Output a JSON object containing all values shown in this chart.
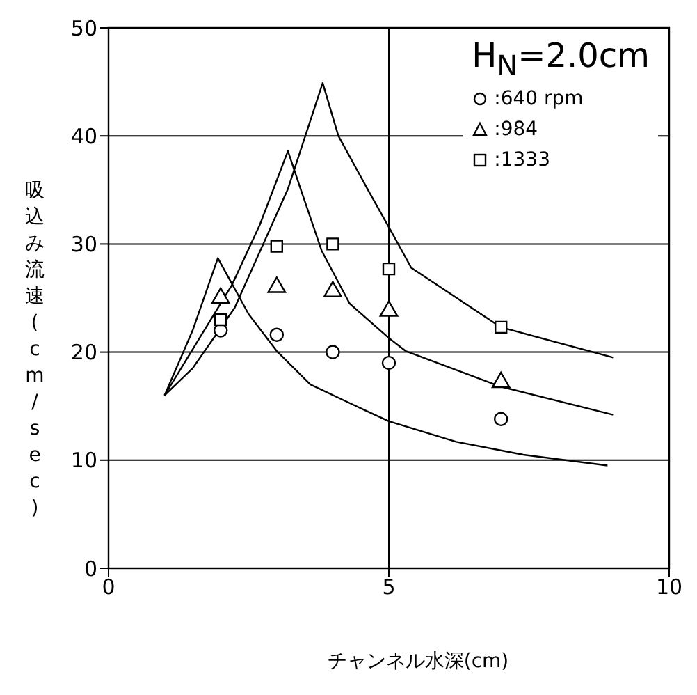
{
  "chart_data": {
    "type": "scatter",
    "xlabel": "チャンネル水深(cm)",
    "ylabel": "吸込み流速(cm/sec)",
    "annotations": [
      "H$_{N}$=2.0cm"
    ],
    "xlim": [
      0,
      10
    ],
    "ylim": [
      0,
      50
    ],
    "xticks": [
      0,
      5,
      10
    ],
    "yticks": [
      0,
      10,
      20,
      30,
      40,
      50
    ],
    "grid": true,
    "legend": "top right",
    "series": [
      {
        "name": ":640 rpm",
        "type": "scatter",
        "marker": "circle",
        "color": "#000000",
        "x": [
          2,
          3,
          4,
          5,
          7
        ],
        "values": [
          22,
          21.6,
          20,
          19,
          13.8
        ]
      },
      {
        "name": ":984",
        "type": "scatter",
        "marker": "triangle",
        "color": "#000000",
        "x": [
          2,
          3,
          4,
          5,
          7
        ],
        "values": [
          25,
          26,
          25.6,
          23.8,
          17.2
        ]
      },
      {
        "name": ":1333",
        "type": "scatter",
        "marker": "square",
        "color": "#000000",
        "x": [
          2,
          3,
          4,
          5,
          7
        ],
        "values": [
          23,
          29.8,
          30,
          27.7,
          22.3
        ]
      },
      {
        "type": "line",
        "marker": "none",
        "color": "#000000",
        "x": [
          1,
          1.5,
          1.95,
          2.5,
          3,
          3.6,
          4.5,
          5,
          6.2,
          7.4,
          8.9
        ],
        "values": [
          16,
          22,
          28.7,
          23.5,
          20.1,
          17,
          14.8,
          13.6,
          11.7,
          10.5,
          9.5
        ]
      },
      {
        "type": "line",
        "marker": "none",
        "color": "#000000",
        "x": [
          1,
          2.2,
          2.7,
          3.2,
          3.4,
          3.8,
          4.3,
          5,
          5.3,
          7,
          9
        ],
        "values": [
          16,
          26.2,
          31.8,
          38.6,
          35.5,
          29.4,
          24.5,
          21.3,
          20.1,
          16.8,
          14.2
        ]
      },
      {
        "type": "line",
        "marker": "none",
        "color": "#000000",
        "x": [
          1,
          1.5,
          2.25,
          3.2,
          3.82,
          4.1,
          4.65,
          5.05,
          5.4,
          7,
          9
        ],
        "values": [
          16,
          18.5,
          24.1,
          35.1,
          44.9,
          40,
          34.8,
          31.1,
          27.8,
          22.3,
          19.5
        ]
      }
    ]
  }
}
